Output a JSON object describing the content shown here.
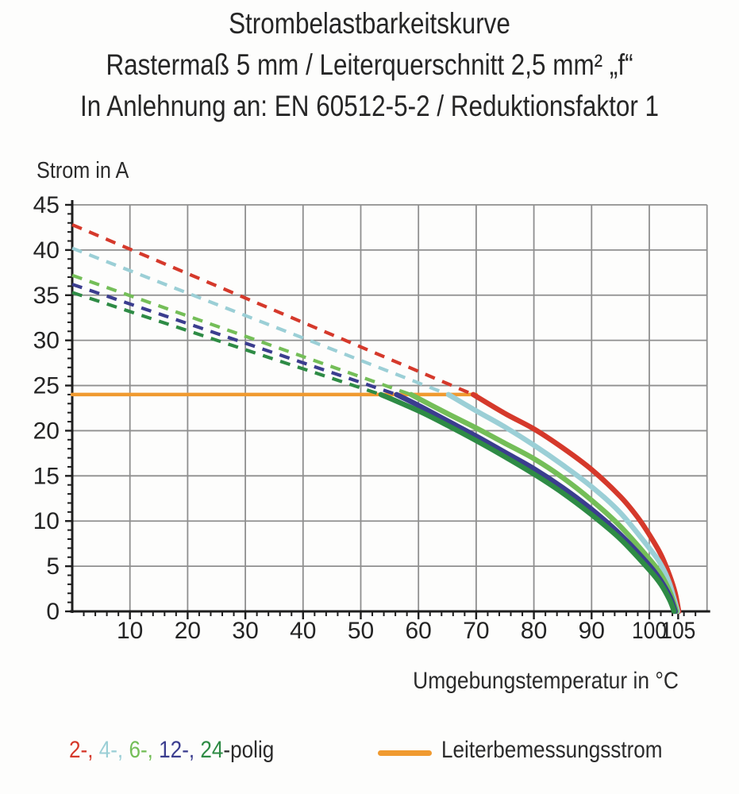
{
  "title": {
    "line1": "Strombelastbarkeitskurve",
    "line2": "Rastermaß 5 mm / Leiterquerschnitt 2,5 mm² „f“",
    "line3": "In Anlehnung an: EN 60512-5-2 / Reduktionsfaktor 1"
  },
  "legend": {
    "items": [
      {
        "label": "2-",
        "color": "#D5392B"
      },
      {
        "label": "4-",
        "color": "#9BCFD6"
      },
      {
        "label": "6-",
        "color": "#74BE58"
      },
      {
        "label": "12-",
        "color": "#3B3D8F"
      },
      {
        "label": "24",
        "color": "#2E8B45"
      }
    ],
    "separator": ", ",
    "suffix": "-polig",
    "text_color": "#2B2B2B",
    "rated_label": "Leiterbemessungsstrom",
    "rated_color": "#F09A30"
  },
  "chart_data": {
    "type": "line",
    "title": "Strombelastbarkeitskurve",
    "xlabel": "Umgebungstemperatur in °C",
    "ylabel": "Strom in A",
    "xlim": [
      0,
      110
    ],
    "ylim": [
      0,
      45
    ],
    "x_major_ticks": [
      10,
      20,
      30,
      40,
      50,
      60,
      70,
      80,
      90,
      100,
      105
    ],
    "x_minor_step": 2,
    "y_major_ticks": [
      0,
      5,
      10,
      15,
      20,
      25,
      30,
      35,
      40,
      45
    ],
    "y_minor_step": 1,
    "grid": true,
    "grid_color": "#8F8F8F",
    "axis_color": "#1E1E1E",
    "legend_position": "bottom",
    "rated_current": {
      "label": "Leiterbemessungsstrom",
      "value_a": 24,
      "x_start": 0,
      "x_end": 70,
      "color": "#F09A30"
    },
    "series": [
      {
        "name": "2-polig",
        "color": "#D5392B",
        "style": "dashed-then-solid",
        "dashed": [
          [
            0,
            42.8
          ],
          [
            69.5,
            24
          ]
        ],
        "solid": [
          [
            69.5,
            24
          ],
          [
            75,
            21.9
          ],
          [
            80,
            20.2
          ],
          [
            85,
            18.1
          ],
          [
            90,
            15.7
          ],
          [
            95,
            12.7
          ],
          [
            98,
            10.4
          ],
          [
            100,
            8.5
          ],
          [
            102,
            6.3
          ],
          [
            103.5,
            4.0
          ],
          [
            104.5,
            2.0
          ],
          [
            105.1,
            0
          ]
        ]
      },
      {
        "name": "4-polig",
        "color": "#9BCFD6",
        "style": "dashed-then-solid",
        "dashed": [
          [
            0,
            40.2
          ],
          [
            65.2,
            24
          ]
        ],
        "solid": [
          [
            65.2,
            24
          ],
          [
            70,
            22.2
          ],
          [
            75,
            20.4
          ],
          [
            80,
            18.4
          ],
          [
            85,
            16.2
          ],
          [
            90,
            13.8
          ],
          [
            95,
            10.9
          ],
          [
            100,
            7.0
          ],
          [
            102,
            5.2
          ],
          [
            103.5,
            3.1
          ],
          [
            104.9,
            0
          ]
        ]
      },
      {
        "name": "6-polig",
        "color": "#74BE58",
        "style": "dashed-then-solid",
        "dashed": [
          [
            0,
            37.2
          ],
          [
            58.7,
            24
          ]
        ],
        "solid": [
          [
            58.7,
            24
          ],
          [
            65,
            21.9
          ],
          [
            70,
            20.3
          ],
          [
            75,
            18.6
          ],
          [
            80,
            16.9
          ],
          [
            85,
            14.8
          ],
          [
            90,
            12.3
          ],
          [
            95,
            9.4
          ],
          [
            100,
            5.8
          ],
          [
            102,
            4.1
          ],
          [
            103.6,
            2.1
          ],
          [
            104.7,
            0
          ]
        ]
      },
      {
        "name": "12-polig",
        "color": "#3B3D8F",
        "style": "dashed-then-solid",
        "dashed": [
          [
            0,
            36.2
          ],
          [
            56.2,
            24
          ]
        ],
        "solid": [
          [
            56.2,
            24
          ],
          [
            60,
            22.8
          ],
          [
            65,
            21.1
          ],
          [
            70,
            19.4
          ],
          [
            75,
            17.6
          ],
          [
            80,
            15.8
          ],
          [
            85,
            13.7
          ],
          [
            90,
            11.3
          ],
          [
            95,
            8.5
          ],
          [
            100,
            5.1
          ],
          [
            102,
            3.4
          ],
          [
            103.6,
            1.6
          ],
          [
            104.5,
            0
          ]
        ]
      },
      {
        "name": "24-polig",
        "color": "#2E8B45",
        "style": "dashed-then-solid",
        "dashed": [
          [
            0,
            35.3
          ],
          [
            53.5,
            24
          ]
        ],
        "solid": [
          [
            53.5,
            24
          ],
          [
            60,
            22.2
          ],
          [
            65,
            20.6
          ],
          [
            70,
            18.9
          ],
          [
            75,
            17.1
          ],
          [
            80,
            15.2
          ],
          [
            85,
            13.1
          ],
          [
            90,
            10.7
          ],
          [
            95,
            8.0
          ],
          [
            100,
            4.6
          ],
          [
            102,
            3.0
          ],
          [
            103.5,
            1.3
          ],
          [
            104.3,
            0
          ]
        ]
      }
    ]
  }
}
